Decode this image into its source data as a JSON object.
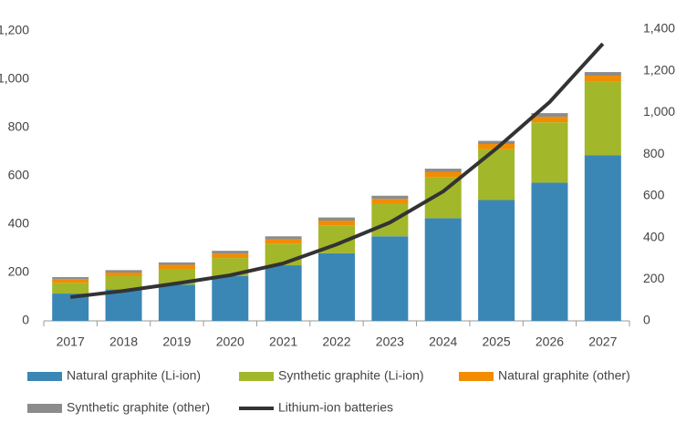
{
  "chart_data": {
    "type": "bar",
    "stacked": true,
    "categories": [
      "2017",
      "2018",
      "2019",
      "2020",
      "2021",
      "2022",
      "2023",
      "2024",
      "2025",
      "2026",
      "2027"
    ],
    "series": [
      {
        "name": "Natural graphite (Li-ion)",
        "color": "#3a87b5",
        "values": [
          113,
          130,
          150,
          185,
          230,
          280,
          350,
          425,
          500,
          572,
          685
        ]
      },
      {
        "name": "Synthetic graphite (Li-ion)",
        "color": "#a3b72a",
        "values": [
          45,
          55,
          65,
          75,
          90,
          115,
          135,
          170,
          210,
          250,
          305
        ]
      },
      {
        "name": "Natural graphite (other)",
        "color": "#f28c00",
        "values": [
          15,
          15,
          17,
          18,
          18,
          20,
          20,
          22,
          22,
          23,
          25
        ]
      },
      {
        "name": "Synthetic graphite (other)",
        "color": "#8c8c8c",
        "values": [
          8,
          10,
          10,
          12,
          12,
          13,
          13,
          13,
          13,
          15,
          15
        ]
      },
      {
        "name": "Lithium-ion batteries",
        "color": "#333333",
        "type": "line",
        "axis": "y2",
        "values": [
          114,
          144,
          180,
          219,
          276,
          367,
          472,
          621,
          827,
          1050,
          1330
        ]
      }
    ],
    "ylim": [
      0,
      1200
    ],
    "yticks": [
      0,
      200,
      400,
      600,
      800,
      {
        "value": 1000,
        "label": "1,000"
      },
      {
        "value": 1200,
        "label": "1,200"
      }
    ],
    "y2lim": [
      0,
      1400
    ],
    "y2ticks": [
      0,
      200,
      400,
      600,
      800,
      {
        "value": 1000,
        "label": "1,000"
      },
      {
        "value": 1200,
        "label": "1,200"
      },
      {
        "value": 1400,
        "label": "1,400"
      }
    ],
    "grid": false,
    "legend": "bottom"
  }
}
